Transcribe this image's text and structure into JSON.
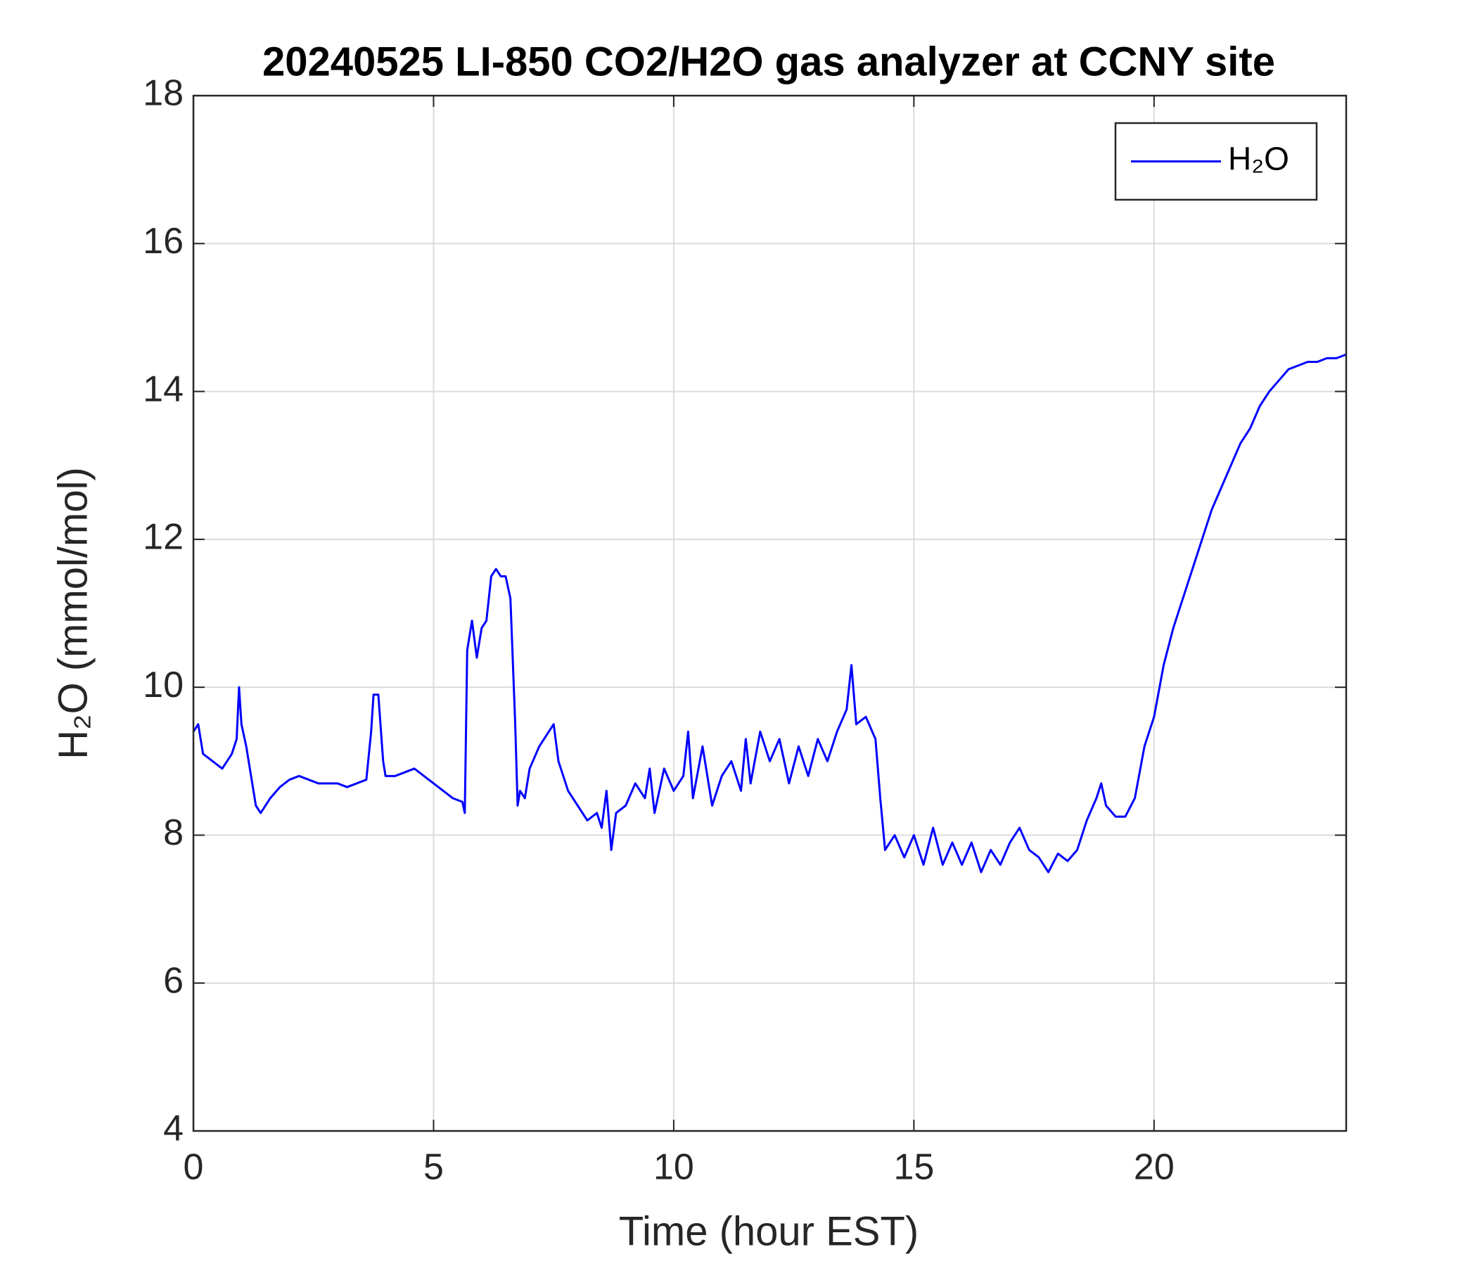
{
  "chart_data": {
    "type": "line",
    "title": "20240525 LI-850 CO2/H2O gas analyzer at CCNY site",
    "x_label": "Time (hour EST)",
    "y_label": "H₂O (mmol/mol)",
    "xlim": [
      0,
      24
    ],
    "xticks": [
      0,
      5,
      10,
      15,
      20
    ],
    "ylim": [
      4,
      18
    ],
    "yticks": [
      4,
      6,
      8,
      10,
      12,
      14,
      16,
      18
    ],
    "grid": true,
    "legend": "upper right",
    "x": [
      0,
      0.1,
      0.2,
      0.4,
      0.6,
      0.8,
      0.9,
      0.95,
      1.0,
      1.1,
      1.2,
      1.3,
      1.4,
      1.6,
      1.8,
      2.0,
      2.2,
      2.4,
      2.6,
      2.8,
      3.0,
      3.2,
      3.4,
      3.6,
      3.7,
      3.75,
      3.85,
      3.95,
      4.0,
      4.2,
      4.4,
      4.6,
      4.8,
      5.0,
      5.2,
      5.4,
      5.6,
      5.65,
      5.7,
      5.8,
      5.9,
      6.0,
      6.1,
      6.2,
      6.3,
      6.4,
      6.5,
      6.6,
      6.7,
      6.75,
      6.8,
      6.9,
      7.0,
      7.2,
      7.4,
      7.5,
      7.6,
      7.8,
      8.0,
      8.2,
      8.4,
      8.5,
      8.6,
      8.7,
      8.8,
      9.0,
      9.2,
      9.4,
      9.5,
      9.6,
      9.8,
      10.0,
      10.2,
      10.3,
      10.4,
      10.6,
      10.8,
      11.0,
      11.2,
      11.4,
      11.5,
      11.6,
      11.8,
      12.0,
      12.2,
      12.4,
      12.6,
      12.8,
      13.0,
      13.2,
      13.4,
      13.6,
      13.7,
      13.8,
      14.0,
      14.2,
      14.3,
      14.4,
      14.6,
      14.8,
      15.0,
      15.2,
      15.4,
      15.6,
      15.8,
      16.0,
      16.2,
      16.4,
      16.6,
      16.8,
      17.0,
      17.2,
      17.4,
      17.6,
      17.8,
      18.0,
      18.2,
      18.4,
      18.6,
      18.8,
      18.9,
      19.0,
      19.2,
      19.4,
      19.6,
      19.8,
      20.0,
      20.2,
      20.4,
      20.6,
      20.8,
      21.0,
      21.2,
      21.4,
      21.6,
      21.8,
      22.0,
      22.2,
      22.4,
      22.6,
      22.8,
      23.0,
      23.2,
      23.4,
      23.6,
      23.8,
      24.0
    ],
    "series": [
      {
        "name": "H₂O",
        "color": "#0000ff",
        "values": [
          9.4,
          9.5,
          9.1,
          9.0,
          8.9,
          9.1,
          9.3,
          10.0,
          9.5,
          9.2,
          8.8,
          8.4,
          8.3,
          8.5,
          8.65,
          8.75,
          8.8,
          8.75,
          8.7,
          8.7,
          8.7,
          8.65,
          8.7,
          8.75,
          9.4,
          9.9,
          9.9,
          9.0,
          8.8,
          8.8,
          8.85,
          8.9,
          8.8,
          8.7,
          8.6,
          8.5,
          8.45,
          8.3,
          10.5,
          10.9,
          10.4,
          10.8,
          10.9,
          11.5,
          11.6,
          11.5,
          11.5,
          11.2,
          9.5,
          8.4,
          8.6,
          8.5,
          8.9,
          9.2,
          9.4,
          9.5,
          9.0,
          8.6,
          8.4,
          8.2,
          8.3,
          8.1,
          8.6,
          7.8,
          8.3,
          8.4,
          8.7,
          8.5,
          8.9,
          8.3,
          8.9,
          8.6,
          8.8,
          9.4,
          8.5,
          9.2,
          8.4,
          8.8,
          9.0,
          8.6,
          9.3,
          8.7,
          9.4,
          9.0,
          9.3,
          8.7,
          9.2,
          8.8,
          9.3,
          9.0,
          9.4,
          9.7,
          10.3,
          9.5,
          9.6,
          9.3,
          8.5,
          7.8,
          8.0,
          7.7,
          8.0,
          7.6,
          8.1,
          7.6,
          7.9,
          7.6,
          7.9,
          7.5,
          7.8,
          7.6,
          7.9,
          8.1,
          7.8,
          7.7,
          7.5,
          7.75,
          7.65,
          7.8,
          8.2,
          8.5,
          8.7,
          8.4,
          8.25,
          8.25,
          8.5,
          9.2,
          9.6,
          10.3,
          10.8,
          11.2,
          11.6,
          12.0,
          12.4,
          12.7,
          13.0,
          13.3,
          13.5,
          13.8,
          14.0,
          14.15,
          14.3,
          14.35,
          14.4,
          14.4,
          14.45,
          14.45,
          14.5
        ]
      }
    ]
  }
}
